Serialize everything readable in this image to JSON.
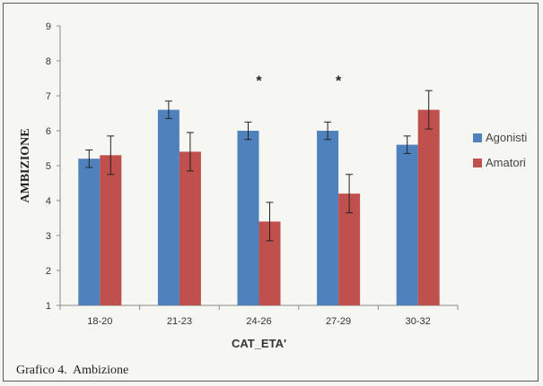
{
  "chart_data": {
    "type": "bar",
    "categories": [
      "18-20",
      "21-23",
      "24-26",
      "27-29",
      "30-32"
    ],
    "series": [
      {
        "name": "Agonisti",
        "color": "#4f81bd",
        "values": [
          5.2,
          6.6,
          6.0,
          6.0,
          5.6
        ],
        "errors": [
          0.25,
          0.25,
          0.25,
          0.25,
          0.25
        ]
      },
      {
        "name": "Amatori",
        "color": "#c0504d",
        "values": [
          5.3,
          5.4,
          3.4,
          4.2,
          6.6
        ],
        "errors": [
          0.55,
          0.55,
          0.55,
          0.55,
          0.55
        ]
      }
    ],
    "xlabel": "CAT_ETA'",
    "ylabel": "AMBIZIONE",
    "ylim": [
      1,
      9
    ],
    "yticks": [
      "1",
      "2",
      "3",
      "4",
      "5",
      "6",
      "7",
      "8",
      "9"
    ],
    "annotations": [
      "*",
      "*"
    ],
    "annotation_categories": [
      "24-26",
      "27-29"
    ],
    "annotation_y": 7.45,
    "legend_position": "right",
    "grid": false
  },
  "caption": "Grafico 4.  Ambizione"
}
